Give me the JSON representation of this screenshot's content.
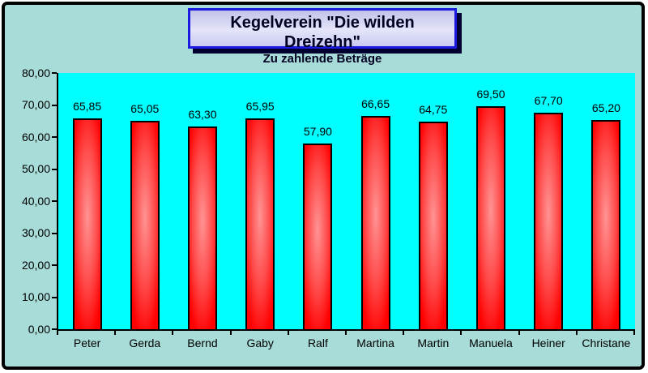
{
  "window": {
    "background": "#a7dcd8",
    "border_color": "#000000"
  },
  "title_box": {
    "title": "Kegelverein \"Die wilden Dreizehn\"",
    "subtitle": "Zu zahlende Beträge",
    "border_color": "#1a1ae0",
    "fill_color": "#d4d4f2",
    "shadow_color": "#000030",
    "text_color": "#000020"
  },
  "chart_data": {
    "type": "bar",
    "title": "Kegelverein \"Die wilden Dreizehn\"",
    "subtitle": "Zu zahlende Beträge",
    "categories": [
      "Peter",
      "Gerda",
      "Bernd",
      "Gaby",
      "Ralf",
      "Martina",
      "Martin",
      "Manuela",
      "Heiner",
      "Christane"
    ],
    "values": [
      65.85,
      65.05,
      63.3,
      65.95,
      57.9,
      66.65,
      64.75,
      69.5,
      67.7,
      65.2
    ],
    "value_labels": [
      "65,85",
      "65,05",
      "63,30",
      "65,95",
      "57,90",
      "66,65",
      "64,75",
      "69,50",
      "67,70",
      "65,20"
    ],
    "y_tick_labels": [
      "80,00",
      "70,00",
      "60,00",
      "50,00",
      "40,00",
      "30,00",
      "20,00",
      "10,00",
      "0,00"
    ],
    "y_tick_values": [
      80,
      70,
      60,
      50,
      40,
      30,
      20,
      10,
      0
    ],
    "ylim": [
      0,
      80
    ],
    "xlabel": "",
    "ylabel": "",
    "grid": false,
    "legend": "none",
    "plot_background": "#00ffff",
    "bar_color": "#ff0000",
    "bar_highlight_color": "#ff9494",
    "bar_border_color": "#000000"
  }
}
